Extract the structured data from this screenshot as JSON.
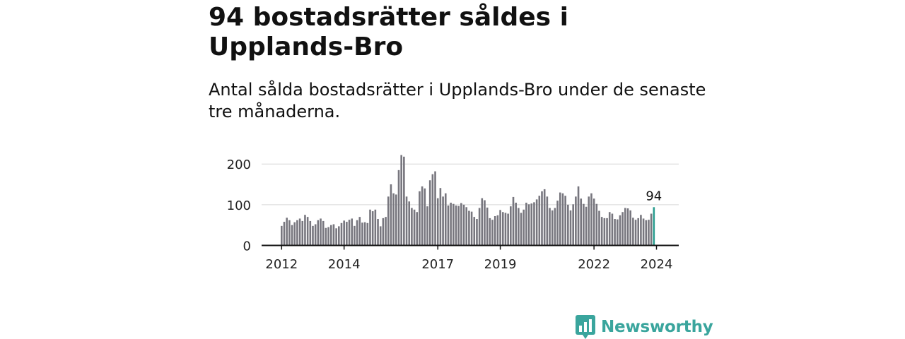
{
  "title": "94 bostadsrätter såldes i Upplands-Bro",
  "subtitle": "Antal sålda bostadsrätter i Upplands-Bro under de senaste tre månaderna.",
  "brand": {
    "name": "Newsworthy",
    "color": "#3aa59d"
  },
  "colors": {
    "bar": "#77767e",
    "highlight": "#2a9d8f",
    "grid": "#d6d6d6",
    "axis": "#111111"
  },
  "chart_data": {
    "type": "bar",
    "xlabel": "",
    "ylabel": "",
    "ylim": [
      0,
      240
    ],
    "yticks": [
      0,
      100,
      200
    ],
    "grid": true,
    "legend": "none",
    "start": "2012-01",
    "x_tick_labels": [
      "2012",
      "2014",
      "2017",
      "2019",
      "2022",
      "2024"
    ],
    "values": [
      48,
      58,
      68,
      62,
      50,
      57,
      62,
      66,
      60,
      75,
      70,
      60,
      48,
      52,
      62,
      66,
      60,
      43,
      45,
      50,
      52,
      42,
      47,
      55,
      61,
      58,
      63,
      66,
      48,
      62,
      70,
      56,
      57,
      55,
      88,
      84,
      88,
      65,
      47,
      67,
      70,
      120,
      150,
      128,
      125,
      185,
      222,
      218,
      120,
      108,
      92,
      88,
      82,
      133,
      145,
      140,
      96,
      160,
      175,
      182,
      116,
      141,
      120,
      128,
      98,
      105,
      102,
      98,
      97,
      104,
      100,
      94,
      85,
      83,
      70,
      65,
      92,
      116,
      111,
      93,
      67,
      63,
      72,
      74,
      87,
      82,
      80,
      78,
      96,
      119,
      105,
      92,
      80,
      88,
      105,
      101,
      103,
      106,
      113,
      122,
      133,
      138,
      120,
      92,
      86,
      92,
      110,
      130,
      128,
      122,
      100,
      86,
      101,
      120,
      145,
      115,
      102,
      95,
      120,
      128,
      115,
      102,
      85,
      70,
      67,
      67,
      82,
      78,
      65,
      64,
      74,
      82,
      92,
      91,
      86,
      68,
      63,
      67,
      75,
      66,
      62,
      63,
      78,
      94
    ],
    "highlight_label": "94"
  }
}
